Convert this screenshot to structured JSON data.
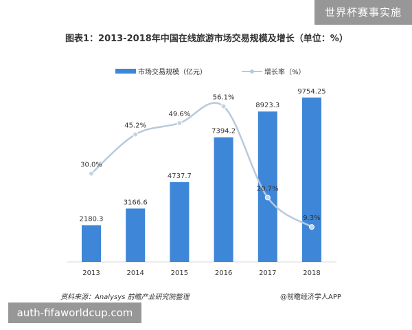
{
  "watermark_top": "世界杯赛事实施",
  "watermark_bottom": "auth-fifaworldcup.com",
  "chart_data": {
    "type": "bar",
    "title": "图表1：2013-2018年中国在线旅游市场交易规模及增长（单位：%）",
    "categories": [
      "2013",
      "2014",
      "2015",
      "2016",
      "2017",
      "2018"
    ],
    "series": [
      {
        "name": "市场交易规模（亿元）",
        "type": "bar",
        "color": "#3e86d8",
        "values": [
          2180.3,
          3166.6,
          4737.7,
          7394.2,
          8923.3,
          9754.25
        ],
        "labels": [
          "2180.3",
          "3166.6",
          "4737.7",
          "7394.2",
          "8923.3",
          "9754.25"
        ]
      },
      {
        "name": "增长率（%）",
        "type": "line",
        "color": "#b9c9dc",
        "values": [
          30.0,
          45.2,
          49.6,
          56.1,
          20.7,
          9.3
        ],
        "labels": [
          "30.0%",
          "45.2%",
          "49.6%",
          "56.1%",
          "20.7%",
          "9.3%"
        ]
      }
    ],
    "ylim": [
      0,
      10400
    ],
    "ylim_right": [
      0,
      60
    ],
    "grid": false,
    "legend_position": "top"
  },
  "source": "资料来源：Analysys  前瞻产业研究院整理",
  "credit": "@前瞻经济学人APP"
}
